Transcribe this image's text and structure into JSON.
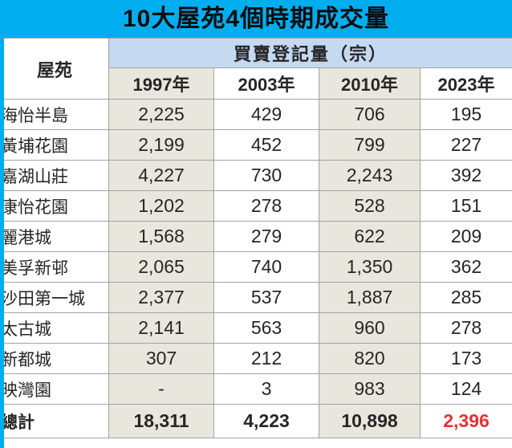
{
  "title": "10大屋苑4個時期成交量",
  "colors": {
    "accent_cyan": "#00aeef",
    "group_header_blue": "#c5d9f1",
    "stripe_beige": "#e9e6dd",
    "total_red": "#e23333"
  },
  "table": {
    "estate_header": "屋苑",
    "group_header": "買賣登記量（宗）",
    "year_headers": [
      "1997年",
      "2003年",
      "2010年",
      "2023年"
    ],
    "rows": [
      {
        "name": "海怡半島",
        "values": [
          "2,225",
          "429",
          "706",
          "195"
        ]
      },
      {
        "name": "黃埔花園",
        "values": [
          "2,199",
          "452",
          "799",
          "227"
        ]
      },
      {
        "name": "嘉湖山莊",
        "values": [
          "4,227",
          "730",
          "2,243",
          "392"
        ]
      },
      {
        "name": "康怡花園",
        "values": [
          "1,202",
          "278",
          "528",
          "151"
        ]
      },
      {
        "name": "麗港城",
        "values": [
          "1,568",
          "279",
          "622",
          "209"
        ]
      },
      {
        "name": "美孚新邨",
        "values": [
          "2,065",
          "740",
          "1,350",
          "362"
        ]
      },
      {
        "name": "沙田第一城",
        "values": [
          "2,377",
          "537",
          "1,887",
          "285"
        ]
      },
      {
        "name": "太古城",
        "values": [
          "2,141",
          "563",
          "960",
          "278"
        ]
      },
      {
        "name": "新都城",
        "values": [
          "307",
          "212",
          "820",
          "173"
        ]
      },
      {
        "name": "映灣園",
        "values": [
          "-",
          "3",
          "983",
          "124"
        ]
      }
    ],
    "total": {
      "name": "總計",
      "values": [
        "18,311",
        "4,223",
        "10,898",
        "2,396"
      ]
    }
  },
  "chart_data": {
    "type": "table",
    "title": "10大屋苑4個時期成交量",
    "group_header": "買賣登記量（宗）",
    "columns": [
      "屋苑",
      "1997年",
      "2003年",
      "2010年",
      "2023年"
    ],
    "rows": [
      [
        "海怡半島",
        2225,
        429,
        706,
        195
      ],
      [
        "黃埔花園",
        2199,
        452,
        799,
        227
      ],
      [
        "嘉湖山莊",
        4227,
        730,
        2243,
        392
      ],
      [
        "康怡花園",
        1202,
        278,
        528,
        151
      ],
      [
        "麗港城",
        1568,
        279,
        622,
        209
      ],
      [
        "美孚新邨",
        2065,
        740,
        1350,
        362
      ],
      [
        "沙田第一城",
        2377,
        537,
        1887,
        285
      ],
      [
        "太古城",
        2141,
        563,
        960,
        278
      ],
      [
        "新都城",
        307,
        212,
        820,
        173
      ],
      [
        "映灣園",
        null,
        3,
        983,
        124
      ]
    ],
    "totals": [
      "總計",
      18311,
      4223,
      10898,
      2396
    ],
    "notes": "2023 total shown in red; '-' means no data for 映灣園 in 1997"
  }
}
